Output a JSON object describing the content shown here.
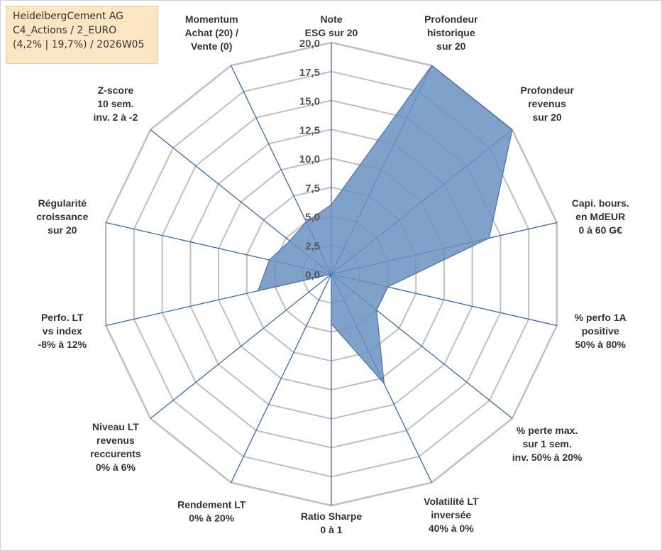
{
  "title_box": {
    "line1": "HeidelbergCement AG",
    "line2": "C4_Actions / 2_EURO",
    "line3": "(4,2% | 19,7%) / 2026W05"
  },
  "chart_data": {
    "type": "radar",
    "rmin": 0,
    "rmax": 20,
    "ticks": [
      "0,0",
      "2,5",
      "5,0",
      "7,5",
      "10,0",
      "12,5",
      "15,0",
      "17,5",
      "20,0"
    ],
    "grid": true,
    "axes": [
      [
        "Note",
        "ESG sur 20"
      ],
      [
        "Profondeur",
        "historique",
        "sur 20"
      ],
      [
        "Profondeur",
        "revenus",
        "sur 20"
      ],
      [
        "Capi. bours.",
        "en MdEUR",
        "0 à 60 G€"
      ],
      [
        "% perfo 1A",
        "positive",
        "50% à 80%"
      ],
      [
        "% perte max.",
        "sur 1 sem.",
        "inv. 50% à 20%"
      ],
      [
        "Volatilité LT",
        "inversée",
        "40% à 0%"
      ],
      [
        "Ratio Sharpe",
        "0 à 1"
      ],
      [
        "Rendement LT",
        "0% à 20%"
      ],
      [
        "Niveau LT",
        "revenus",
        "reccurents",
        "0% à 6%"
      ],
      [
        "Perfo. LT",
        "vs index",
        "-8% à 12%"
      ],
      [
        "Régularité",
        "croissance",
        "sur 20"
      ],
      [
        "Z-score",
        "10 sem.",
        "inv. 2 à -2"
      ],
      [
        "Momentum",
        "Achat (20) /",
        "Vente (0)"
      ]
    ],
    "series": [
      {
        "values": [
          6.0,
          20.0,
          20.0,
          14.0,
          5.0,
          5.0,
          10.5,
          4.3,
          0,
          0,
          6.5,
          5.5,
          4.6,
          5.0
        ],
        "fill": "#6a90c0",
        "stroke": "#4a72a8"
      }
    ],
    "colors": {
      "grid": "#bfbfbf",
      "spoke": "#3a68b0"
    }
  }
}
